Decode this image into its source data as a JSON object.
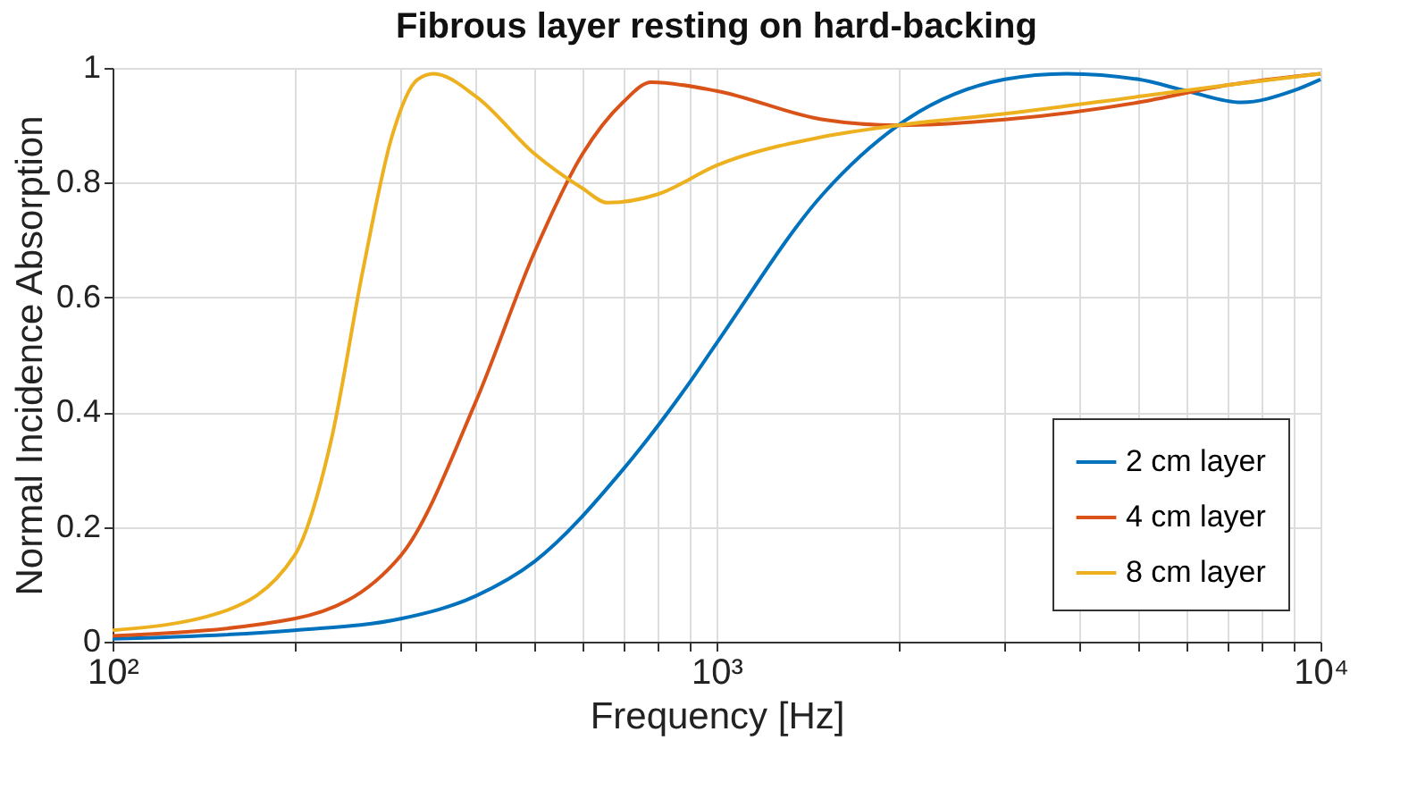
{
  "chart_data": {
    "type": "line",
    "title": "Fibrous layer resting on hard-backing",
    "xlabel": "Frequency [Hz]",
    "ylabel": "Normal Incidence Absorption",
    "log": "x",
    "xlim": [
      100,
      10000
    ],
    "ylim": [
      0,
      1
    ],
    "xticks": [
      {
        "value": 100,
        "label": "10²"
      },
      {
        "value": 200,
        "label": null
      },
      {
        "value": 300,
        "label": null
      },
      {
        "value": 400,
        "label": null
      },
      {
        "value": 500,
        "label": null
      },
      {
        "value": 600,
        "label": null
      },
      {
        "value": 700,
        "label": null
      },
      {
        "value": 800,
        "label": null
      },
      {
        "value": 900,
        "label": null
      },
      {
        "value": 1000,
        "label": "10³"
      },
      {
        "value": 2000,
        "label": null
      },
      {
        "value": 3000,
        "label": null
      },
      {
        "value": 4000,
        "label": null
      },
      {
        "value": 5000,
        "label": null
      },
      {
        "value": 6000,
        "label": null
      },
      {
        "value": 7000,
        "label": null
      },
      {
        "value": 8000,
        "label": null
      },
      {
        "value": 9000,
        "label": null
      },
      {
        "value": 10000,
        "label": "10⁴"
      }
    ],
    "yticks": [
      0,
      0.2,
      0.4,
      0.6,
      0.8,
      1
    ],
    "grid": true,
    "legend": "bottom right",
    "marker": "none",
    "line_style": "solid",
    "series": [
      {
        "name": "2 cm layer",
        "color": "#0072bd",
        "x": [
          100,
          200,
          300,
          400,
          500,
          700,
          900,
          1000,
          1500,
          2000,
          3000,
          3800,
          5000,
          6000,
          7400,
          9000,
          10000
        ],
        "values": [
          0.005,
          0.02,
          0.04,
          0.08,
          0.14,
          0.3,
          0.45,
          0.52,
          0.78,
          0.9,
          0.98,
          0.99,
          0.98,
          0.96,
          0.94,
          0.96,
          0.98
        ]
      },
      {
        "name": "4 cm layer",
        "color": "#d95319",
        "x": [
          100,
          200,
          300,
          400,
          500,
          600,
          700,
          780,
          1000,
          1500,
          2000,
          3000,
          5000,
          7000,
          10000
        ],
        "values": [
          0.01,
          0.04,
          0.15,
          0.42,
          0.68,
          0.85,
          0.94,
          0.975,
          0.96,
          0.91,
          0.9,
          0.91,
          0.94,
          0.97,
          0.99
        ]
      },
      {
        "name": "8 cm layer",
        "color": "#edb120",
        "x": [
          100,
          150,
          200,
          230,
          260,
          290,
          320,
          340,
          400,
          500,
          600,
          660,
          800,
          1000,
          1500,
          2000,
          3000,
          5000,
          7000,
          10000
        ],
        "values": [
          0.02,
          0.05,
          0.15,
          0.35,
          0.65,
          0.88,
          0.98,
          0.99,
          0.95,
          0.85,
          0.79,
          0.765,
          0.78,
          0.83,
          0.88,
          0.9,
          0.92,
          0.95,
          0.97,
          0.99
        ]
      }
    ]
  }
}
